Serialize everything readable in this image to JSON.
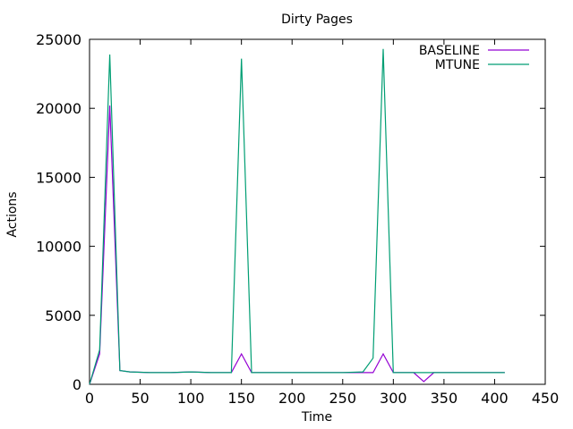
{
  "chart_data": {
    "type": "line",
    "title": "Dirty Pages",
    "xlabel": "Time",
    "ylabel": "Actions",
    "xlim": [
      0,
      450
    ],
    "ylim": [
      0,
      25000
    ],
    "xticks": [
      0,
      50,
      100,
      150,
      200,
      250,
      300,
      350,
      400,
      450
    ],
    "yticks": [
      0,
      5000,
      10000,
      15000,
      20000,
      25000
    ],
    "grid": false,
    "legend_position": "top-right",
    "series": [
      {
        "name": "BASELINE",
        "color": "#9400d3",
        "x": [
          0,
          10,
          20,
          30,
          40,
          60,
          80,
          100,
          120,
          140,
          150,
          160,
          200,
          250,
          280,
          290,
          300,
          310,
          320,
          330,
          340,
          350,
          410
        ],
        "y": [
          0,
          2200,
          20200,
          1000,
          900,
          850,
          850,
          900,
          850,
          850,
          2200,
          850,
          850,
          850,
          850,
          2200,
          850,
          850,
          850,
          200,
          850,
          850,
          850
        ]
      },
      {
        "name": "MTUNE",
        "color": "#009e73",
        "x": [
          0,
          10,
          20,
          30,
          40,
          60,
          80,
          100,
          120,
          140,
          150,
          160,
          200,
          250,
          270,
          280,
          290,
          300,
          310,
          350,
          410
        ],
        "y": [
          0,
          2500,
          23900,
          1000,
          900,
          850,
          850,
          900,
          850,
          850,
          23600,
          850,
          850,
          850,
          900,
          1900,
          24300,
          850,
          850,
          850,
          850
        ]
      }
    ]
  }
}
